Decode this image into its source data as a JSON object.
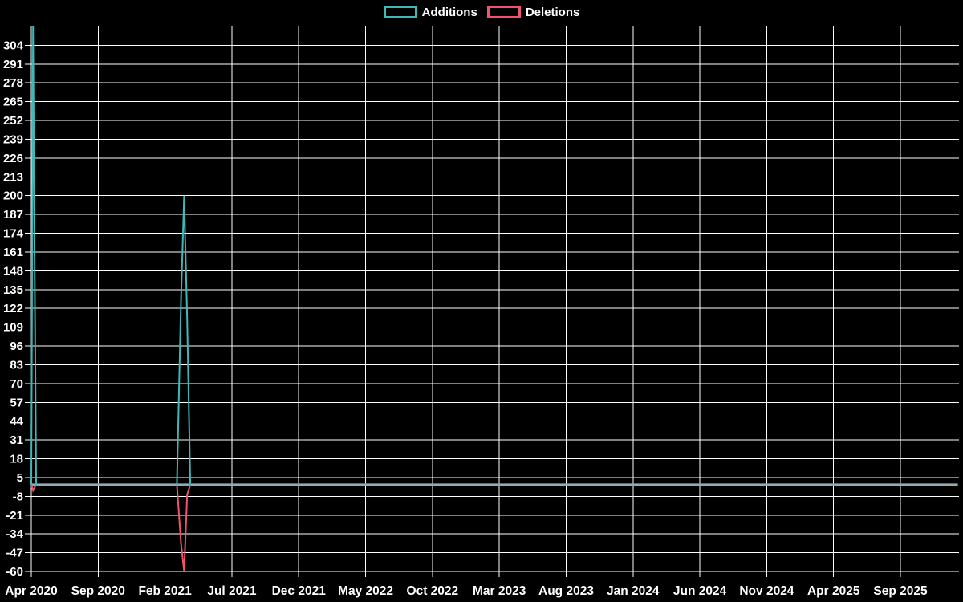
{
  "legend": {
    "items": [
      {
        "label": "Additions",
        "color": "#3fb8b8"
      },
      {
        "label": "Deletions",
        "color": "#f0546e"
      }
    ]
  },
  "chart_data": {
    "type": "line",
    "title": "",
    "xlabel": "",
    "ylabel": "",
    "background": "#000000",
    "grid": true,
    "grid_color": "#ffffff",
    "text_color": "#ffffff",
    "legend_position": "top-center",
    "legend": [
      {
        "label": "Additions",
        "color": "#3fb8b8"
      },
      {
        "label": "Deletions",
        "color": "#f0546e"
      }
    ],
    "ylim": [
      -60,
      317
    ],
    "y_tick_step": 13,
    "y_ticks": [
      304,
      291,
      278,
      265,
      252,
      239,
      226,
      213,
      200,
      187,
      174,
      161,
      148,
      135,
      122,
      109,
      96,
      83,
      70,
      57,
      44,
      31,
      18,
      5,
      -8,
      -21,
      -34,
      -47,
      -60
    ],
    "x_ticks": [
      "Apr 2020",
      "Sep 2020",
      "Feb 2021",
      "Jul 2021",
      "Dec 2021",
      "May 2022",
      "Oct 2022",
      "Mar 2023",
      "Aug 2023",
      "Jan 2024",
      "Jun 2024",
      "Nov 2024",
      "Apr 2025",
      "Sep 2025"
    ],
    "x_tick_interval_months": 5,
    "x_range": [
      "2020-04-01",
      "2026-01-10"
    ],
    "baseline": {
      "value": 0,
      "color": "#93aab5"
    },
    "series": [
      {
        "name": "Additions",
        "color": "#3fb8b8",
        "segments": [
          [
            [
              "2020-04-01",
              0
            ],
            [
              "2020-04-05",
              317
            ],
            [
              "2020-04-12",
              0
            ]
          ],
          [
            [
              "2021-02-28",
              0
            ],
            [
              "2021-03-07",
              129
            ],
            [
              "2021-03-14",
              200
            ],
            [
              "2021-03-21",
              115
            ],
            [
              "2021-03-28",
              0
            ]
          ]
        ]
      },
      {
        "name": "Deletions",
        "color": "#f0546e",
        "segments": [
          [
            [
              "2020-04-01",
              0
            ],
            [
              "2020-04-05",
              -4
            ],
            [
              "2020-04-12",
              0
            ]
          ],
          [
            [
              "2021-02-28",
              0
            ],
            [
              "2021-03-07",
              -41
            ],
            [
              "2021-03-14",
              -60
            ],
            [
              "2021-03-21",
              -7
            ],
            [
              "2021-03-28",
              0
            ]
          ]
        ]
      }
    ]
  }
}
